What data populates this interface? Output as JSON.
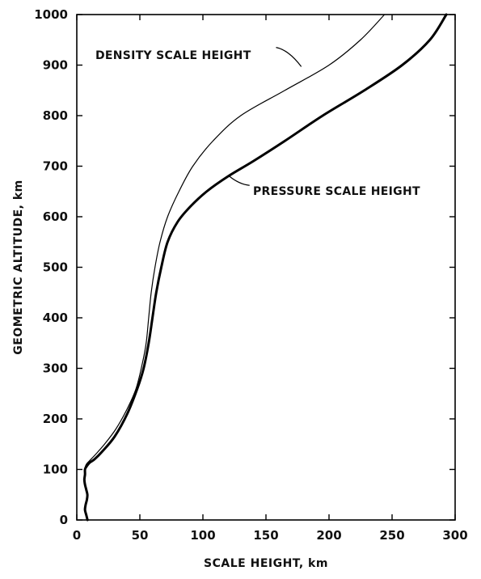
{
  "chart_data": {
    "type": "line",
    "xlabel": "SCALE HEIGHT, km",
    "ylabel": "GEOMETRIC ALTITUDE, km",
    "xlim": [
      0,
      300
    ],
    "ylim": [
      0,
      1000
    ],
    "x_ticks": [
      0,
      50,
      100,
      150,
      200,
      250,
      300
    ],
    "y_ticks": [
      0,
      100,
      200,
      300,
      400,
      500,
      600,
      700,
      800,
      900,
      1000
    ],
    "grid": false,
    "series": [
      {
        "name": "PRESSURE SCALE HEIGHT",
        "color": "#000000",
        "stroke": "thick",
        "points": [
          [
            8.5,
            0
          ],
          [
            7.5,
            10
          ],
          [
            6.5,
            20
          ],
          [
            7,
            30
          ],
          [
            8,
            40
          ],
          [
            8.4,
            50
          ],
          [
            7.5,
            60
          ],
          [
            6.5,
            70
          ],
          [
            6,
            80
          ],
          [
            6.5,
            90
          ],
          [
            6.5,
            100
          ],
          [
            7.5,
            105
          ],
          [
            10,
            113
          ],
          [
            14,
            120
          ],
          [
            20,
            135
          ],
          [
            30,
            165
          ],
          [
            40,
            210
          ],
          [
            48,
            260
          ],
          [
            53,
            300
          ],
          [
            57,
            350
          ],
          [
            60,
            400
          ],
          [
            63,
            450
          ],
          [
            67,
            500
          ],
          [
            72,
            550
          ],
          [
            80,
            590
          ],
          [
            90,
            620
          ],
          [
            103,
            650
          ],
          [
            120,
            680
          ],
          [
            140,
            710
          ],
          [
            165,
            750
          ],
          [
            195,
            800
          ],
          [
            228,
            850
          ],
          [
            258,
            900
          ],
          [
            280,
            950
          ],
          [
            293,
            1000
          ]
        ]
      },
      {
        "name": "DENSITY SCALE HEIGHT",
        "color": "#000000",
        "stroke": "thin",
        "points": [
          [
            6,
            100
          ],
          [
            7.5,
            110
          ],
          [
            10,
            117
          ],
          [
            15,
            130
          ],
          [
            22,
            150
          ],
          [
            31,
            180
          ],
          [
            40,
            220
          ],
          [
            47,
            260
          ],
          [
            52,
            310
          ],
          [
            55,
            350
          ],
          [
            57,
            400
          ],
          [
            59,
            450
          ],
          [
            62,
            500
          ],
          [
            66,
            550
          ],
          [
            72,
            600
          ],
          [
            81,
            650
          ],
          [
            92,
            700
          ],
          [
            108,
            750
          ],
          [
            130,
            800
          ],
          [
            165,
            850
          ],
          [
            200,
            900
          ],
          [
            225,
            950
          ],
          [
            244,
            1000
          ]
        ]
      }
    ],
    "annotations": [
      {
        "text": "DENSITY SCALE HEIGHT",
        "series": 1
      },
      {
        "text": "PRESSURE SCALE HEIGHT",
        "series": 0
      }
    ]
  }
}
